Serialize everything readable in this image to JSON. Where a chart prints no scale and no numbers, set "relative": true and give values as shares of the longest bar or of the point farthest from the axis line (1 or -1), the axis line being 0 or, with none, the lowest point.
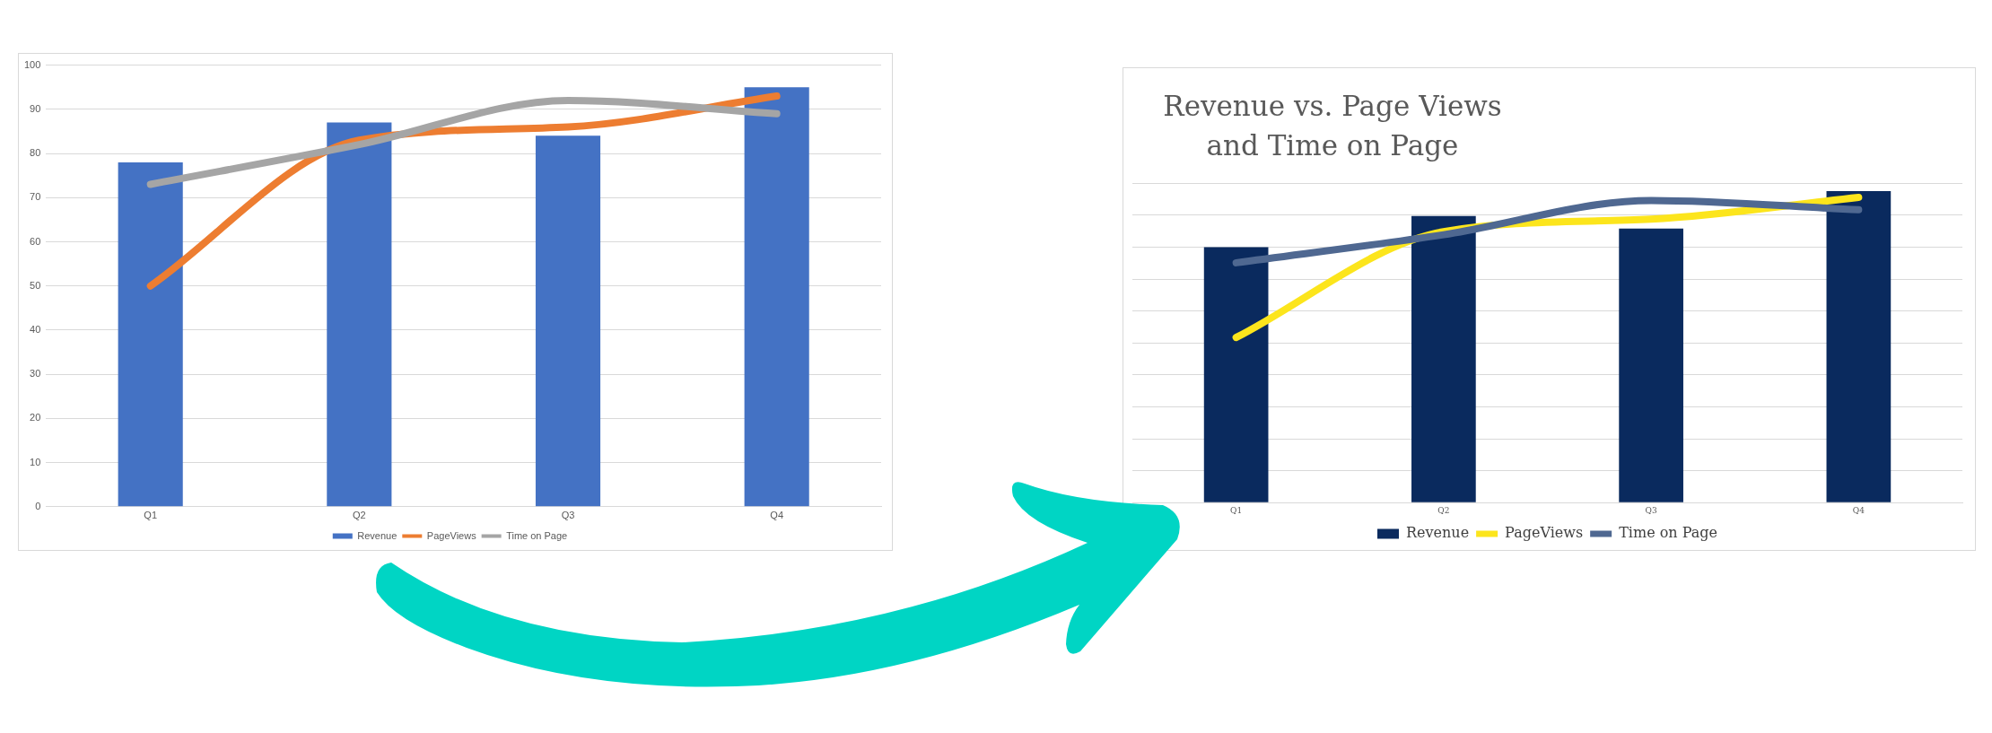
{
  "chart_data": [
    {
      "type": "bar",
      "categories": [
        "Q1",
        "Q2",
        "Q3",
        "Q4"
      ],
      "series": [
        {
          "name": "Revenue",
          "color": "#4472c4",
          "values": [
            78,
            87,
            84,
            95
          ]
        },
        {
          "name": "PageViews",
          "type": "line",
          "color": "#ed7d31",
          "values": [
            50,
            83,
            86,
            93
          ]
        },
        {
          "name": "Time on Page",
          "type": "line",
          "color": "#a5a5a5",
          "values": [
            73,
            82,
            92,
            89
          ]
        }
      ],
      "ylim": [
        0,
        100
      ],
      "yticks": [
        0,
        10,
        20,
        30,
        40,
        50,
        60,
        70,
        80,
        90,
        100
      ],
      "grid": "y",
      "legend": "bottom"
    },
    {
      "type": "bar",
      "title": "Revenue vs. Page Views and Time on Page",
      "categories": [
        "Q1",
        "Q2",
        "Q3",
        "Q4"
      ],
      "series": [
        {
          "name": "Revenue",
          "color": "#0a2a5e",
          "values": [
            0.82,
            0.92,
            0.88,
            1
          ]
        },
        {
          "name": "PageViews",
          "type": "line",
          "color": "#fce51c",
          "values": [
            0.53,
            0.87,
            0.91,
            0.98
          ]
        },
        {
          "name": "Time on Page",
          "type": "line",
          "color": "#4f6891",
          "values": [
            0.77,
            0.86,
            0.97,
            0.94
          ]
        }
      ],
      "relative": true,
      "grid": "y",
      "legend": "bottom"
    }
  ]
}
